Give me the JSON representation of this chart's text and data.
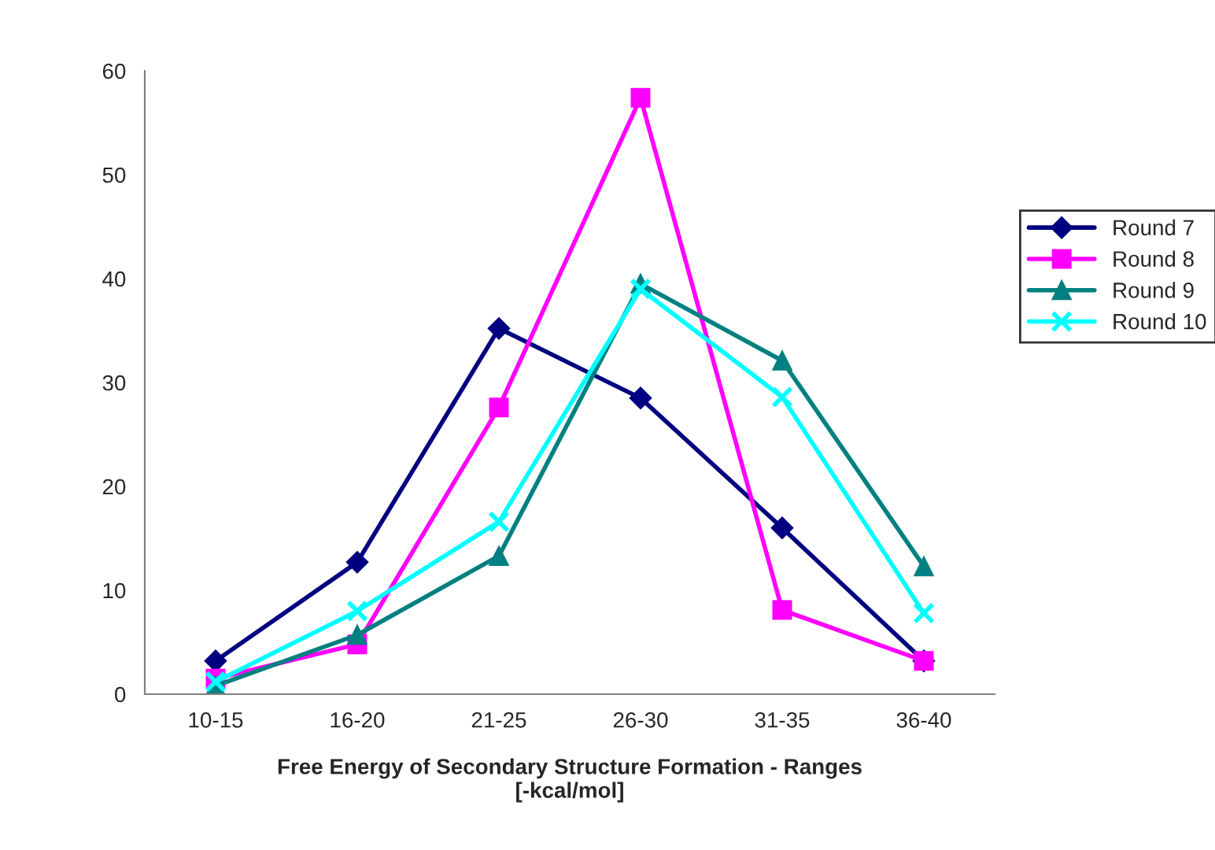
{
  "chart_data": {
    "type": "line",
    "xlabel": "Free Energy of Secondary Structure Formation - Ranges\n[-kcal/mol]",
    "categories": [
      "10-15",
      "16-20",
      "21-25",
      "26-30",
      "31-35",
      "36-40"
    ],
    "series": [
      {
        "name": "Round 7",
        "color": "#000080",
        "marker": "diamond",
        "values": [
          3.2,
          12.7,
          35.2,
          28.5,
          16.0,
          3.2
        ]
      },
      {
        "name": "Round 8",
        "color": "#ff00ff",
        "marker": "square",
        "values": [
          1.5,
          4.8,
          27.6,
          57.4,
          8.1,
          3.2
        ]
      },
      {
        "name": "Round 9",
        "color": "#008080",
        "marker": "triangle",
        "values": [
          0.8,
          5.7,
          13.3,
          39.5,
          32.1,
          12.3
        ]
      },
      {
        "name": "Round 10",
        "color": "#00ffff",
        "marker": "cross",
        "values": [
          1.2,
          8.0,
          16.6,
          39.0,
          28.6,
          7.8
        ]
      }
    ],
    "ylim": [
      0,
      60
    ],
    "yticks": [
      0,
      10,
      20,
      30,
      40,
      50,
      60
    ],
    "grid": false,
    "legend": "right"
  }
}
